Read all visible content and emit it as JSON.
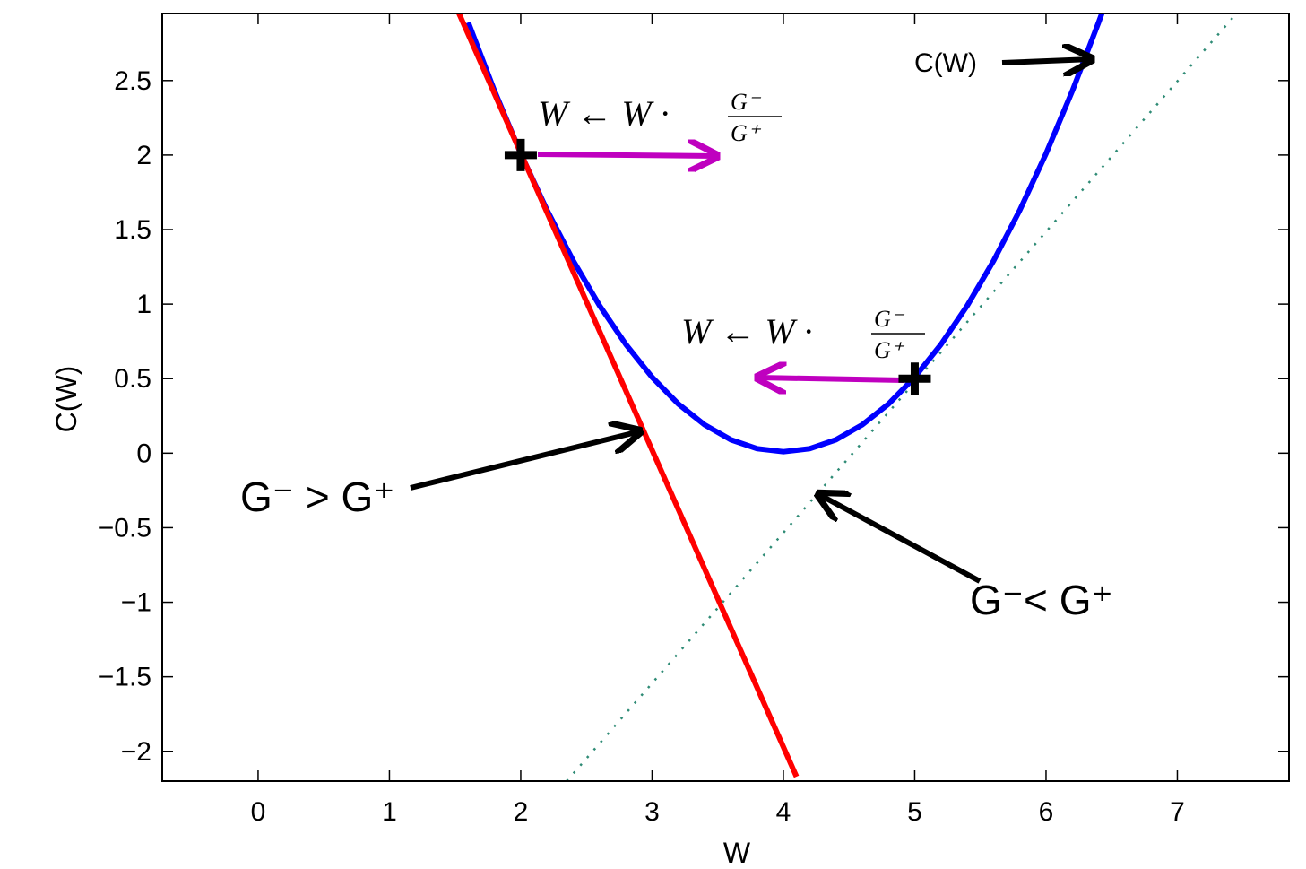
{
  "chart_data": {
    "type": "line",
    "title": "",
    "xlabel": "W",
    "ylabel": "C(W)",
    "xlim": [
      -0.73,
      7.85
    ],
    "ylim": [
      -2.2,
      2.95
    ],
    "xticks": [
      0,
      1,
      2,
      3,
      4,
      5,
      6,
      7
    ],
    "xtick_labels": [
      "0",
      "1",
      "2",
      "3",
      "4",
      "5",
      "6",
      "7"
    ],
    "yticks": [
      -2,
      -1.5,
      -1,
      -0.5,
      0,
      0.5,
      1,
      1.5,
      2,
      2.5
    ],
    "ytick_labels": [
      "−2",
      "−1.5",
      "−1",
      "−0.5",
      "0",
      "0.5",
      "1",
      "1.5",
      "2",
      "2.5"
    ],
    "grid": false,
    "series": [
      {
        "name": "C(W)",
        "style": "solid",
        "color": "#0000ff",
        "function": "0.5 * (W - 4)^2 + 0.01",
        "x": [
          1.6,
          1.8,
          2.0,
          2.2,
          2.4,
          2.6,
          2.8,
          3.0,
          3.2,
          3.4,
          3.6,
          3.8,
          4.0,
          4.2,
          4.4,
          4.6,
          4.8,
          5.0,
          5.2,
          5.4,
          5.6,
          5.8,
          6.0,
          6.2,
          6.4,
          6.5
        ],
        "y": [
          2.89,
          2.43,
          2.01,
          1.63,
          1.29,
          0.99,
          0.73,
          0.51,
          0.33,
          0.19,
          0.09,
          0.03,
          0.01,
          0.03,
          0.09,
          0.19,
          0.33,
          0.51,
          0.73,
          0.99,
          1.29,
          1.63,
          2.01,
          2.43,
          2.89,
          3.13
        ]
      },
      {
        "name": "",
        "style": "solid",
        "color": "#ff0000",
        "x": [
          1.52,
          4.1
        ],
        "y": [
          2.97,
          -2.17
        ]
      },
      {
        "name": "",
        "style": "dotted",
        "color": "#2e8b75",
        "x": [
          2.35,
          7.45
        ],
        "y": [
          -2.2,
          2.95
        ]
      }
    ],
    "points": [
      {
        "x": 2.0,
        "y": 2.0,
        "marker": "+"
      },
      {
        "x": 5.0,
        "y": 0.5,
        "marker": "+"
      }
    ],
    "annotations": [
      {
        "text": "C(W)"
      },
      {
        "text": "G⁻ > G⁺"
      },
      {
        "text": "G⁻< G⁺"
      },
      {
        "text": "W ← W · G⁻/G⁺"
      },
      {
        "text": "W ← W · G⁻/G⁺"
      }
    ],
    "colors": {
      "curve": "#0000ff",
      "tangent": "#ff0000",
      "arrow_update": "#bf00bf",
      "dotted": "#2e8b75"
    }
  }
}
